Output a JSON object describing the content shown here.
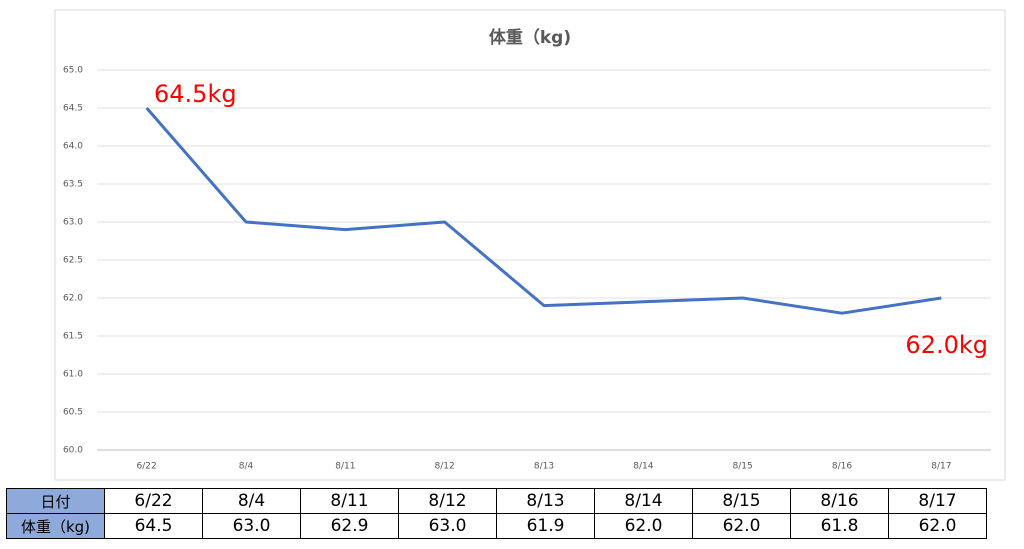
{
  "chart_data": {
    "type": "line",
    "title": "体重（kg)",
    "categories": [
      "6/22",
      "8/4",
      "8/11",
      "8/12",
      "8/13",
      "8/14",
      "8/15",
      "8/16",
      "8/17"
    ],
    "series": [
      {
        "color": "#4472c4",
        "values": [
          64.5,
          63.0,
          62.9,
          63.0,
          61.9,
          61.95,
          62.0,
          61.8,
          62.0
        ]
      }
    ],
    "ylim": [
      60,
      65
    ],
    "yticks": [
      {
        "value": 60,
        "label": "60.0"
      },
      60.5,
      {
        "value": 61,
        "label": "61.0"
      },
      61.5,
      {
        "value": 62,
        "label": "62.0"
      },
      62.5,
      {
        "value": 63,
        "label": "63.0"
      },
      63.5,
      {
        "value": 64,
        "label": "64.0"
      },
      64.5,
      {
        "value": 65,
        "label": "65.0"
      }
    ],
    "grid": true,
    "annotations": [
      {
        "text": "64.5kg",
        "color": "#ff0000"
      },
      {
        "text": "62.0kg",
        "color": "#ff0000"
      }
    ]
  },
  "table": {
    "header_row": [
      "日付",
      "6/22",
      "8/4",
      "8/11",
      "8/12",
      "8/13",
      "8/14",
      "8/15",
      "8/16",
      "8/17"
    ],
    "value_row": [
      "体重（kg)",
      "64.5",
      "63.0",
      "62.9",
      "63.0",
      "61.9",
      "62.0",
      "62.0",
      "61.8",
      "62.0"
    ]
  }
}
